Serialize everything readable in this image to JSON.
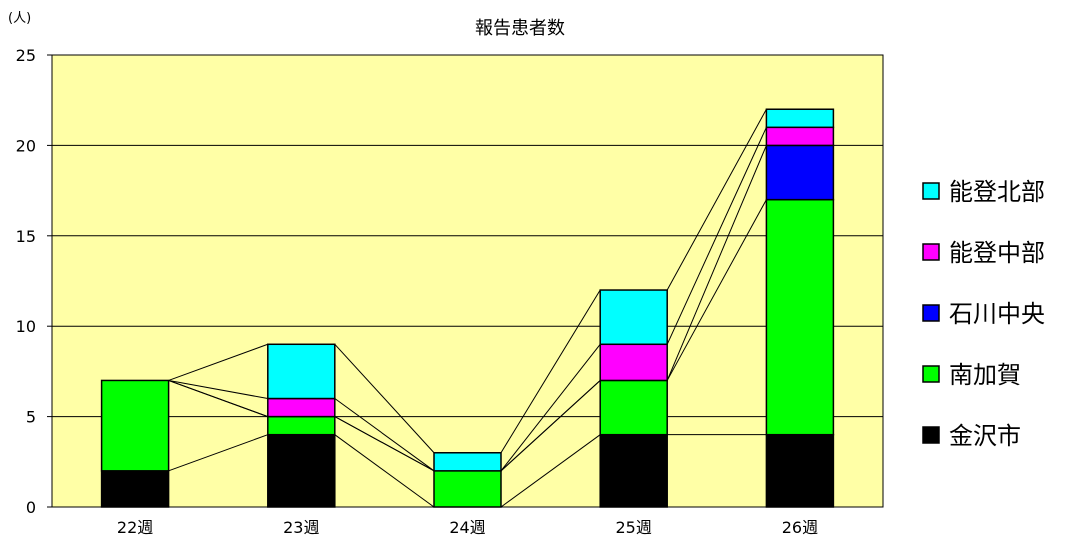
{
  "chart_data": {
    "type": "bar",
    "stacked": true,
    "title": "報告患者数",
    "unit_label": "(人)",
    "categories": [
      "22週",
      "23週",
      "24週",
      "25週",
      "26週"
    ],
    "ylim": [
      0,
      25
    ],
    "yticks": [
      0,
      5,
      10,
      15,
      20,
      25
    ],
    "grid": true,
    "legend_position": "right",
    "series_lines": true,
    "plot_background": "#FFFFA6",
    "series": [
      {
        "name": "金沢市",
        "color": "#000000",
        "values": [
          2,
          4,
          0,
          4,
          4
        ]
      },
      {
        "name": "南加賀",
        "color": "#00FF00",
        "values": [
          5,
          1,
          2,
          3,
          13
        ]
      },
      {
        "name": "石川中央",
        "color": "#0000FF",
        "values": [
          0,
          0,
          0,
          0,
          3
        ]
      },
      {
        "name": "能登中部",
        "color": "#FF00FF",
        "values": [
          0,
          1,
          0,
          2,
          1
        ]
      },
      {
        "name": "能登北部",
        "color": "#00FFFF",
        "values": [
          0,
          3,
          1,
          3,
          1
        ]
      }
    ]
  }
}
